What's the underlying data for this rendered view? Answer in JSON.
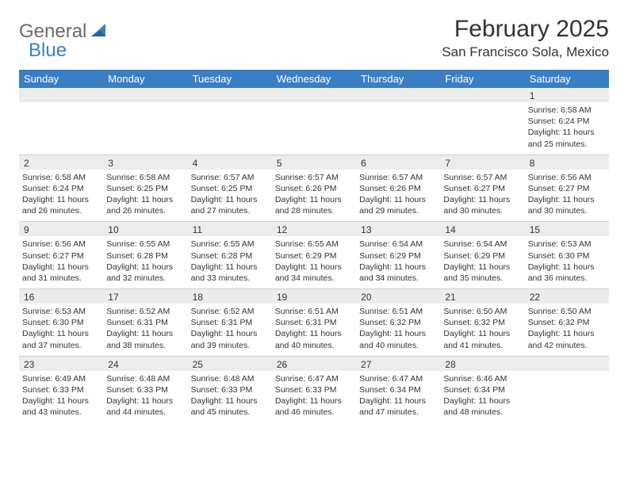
{
  "logo": {
    "part1": "General",
    "part2": "Blue"
  },
  "title": "February 2025",
  "location": "San Francisco Sola, Mexico",
  "colors": {
    "headerBg": "#3a7fc4",
    "headerText": "#ffffff",
    "stripBg": "#ececec",
    "bodyText": "#333333",
    "logoGray": "#6a6a6a",
    "logoBlue": "#3a7fc4",
    "rowBorder": "#cfcfcf"
  },
  "dayHeaders": [
    "Sunday",
    "Monday",
    "Tuesday",
    "Wednesday",
    "Thursday",
    "Friday",
    "Saturday"
  ],
  "weeks": [
    [
      {
        "n": "",
        "sunrise": "",
        "sunset": "",
        "daylight": ""
      },
      {
        "n": "",
        "sunrise": "",
        "sunset": "",
        "daylight": ""
      },
      {
        "n": "",
        "sunrise": "",
        "sunset": "",
        "daylight": ""
      },
      {
        "n": "",
        "sunrise": "",
        "sunset": "",
        "daylight": ""
      },
      {
        "n": "",
        "sunrise": "",
        "sunset": "",
        "daylight": ""
      },
      {
        "n": "",
        "sunrise": "",
        "sunset": "",
        "daylight": ""
      },
      {
        "n": "1",
        "sunrise": "Sunrise: 6:58 AM",
        "sunset": "Sunset: 6:24 PM",
        "daylight": "Daylight: 11 hours and 25 minutes."
      }
    ],
    [
      {
        "n": "2",
        "sunrise": "Sunrise: 6:58 AM",
        "sunset": "Sunset: 6:24 PM",
        "daylight": "Daylight: 11 hours and 26 minutes."
      },
      {
        "n": "3",
        "sunrise": "Sunrise: 6:58 AM",
        "sunset": "Sunset: 6:25 PM",
        "daylight": "Daylight: 11 hours and 26 minutes."
      },
      {
        "n": "4",
        "sunrise": "Sunrise: 6:57 AM",
        "sunset": "Sunset: 6:25 PM",
        "daylight": "Daylight: 11 hours and 27 minutes."
      },
      {
        "n": "5",
        "sunrise": "Sunrise: 6:57 AM",
        "sunset": "Sunset: 6:26 PM",
        "daylight": "Daylight: 11 hours and 28 minutes."
      },
      {
        "n": "6",
        "sunrise": "Sunrise: 6:57 AM",
        "sunset": "Sunset: 6:26 PM",
        "daylight": "Daylight: 11 hours and 29 minutes."
      },
      {
        "n": "7",
        "sunrise": "Sunrise: 6:57 AM",
        "sunset": "Sunset: 6:27 PM",
        "daylight": "Daylight: 11 hours and 30 minutes."
      },
      {
        "n": "8",
        "sunrise": "Sunrise: 6:56 AM",
        "sunset": "Sunset: 6:27 PM",
        "daylight": "Daylight: 11 hours and 30 minutes."
      }
    ],
    [
      {
        "n": "9",
        "sunrise": "Sunrise: 6:56 AM",
        "sunset": "Sunset: 6:27 PM",
        "daylight": "Daylight: 11 hours and 31 minutes."
      },
      {
        "n": "10",
        "sunrise": "Sunrise: 6:55 AM",
        "sunset": "Sunset: 6:28 PM",
        "daylight": "Daylight: 11 hours and 32 minutes."
      },
      {
        "n": "11",
        "sunrise": "Sunrise: 6:55 AM",
        "sunset": "Sunset: 6:28 PM",
        "daylight": "Daylight: 11 hours and 33 minutes."
      },
      {
        "n": "12",
        "sunrise": "Sunrise: 6:55 AM",
        "sunset": "Sunset: 6:29 PM",
        "daylight": "Daylight: 11 hours and 34 minutes."
      },
      {
        "n": "13",
        "sunrise": "Sunrise: 6:54 AM",
        "sunset": "Sunset: 6:29 PM",
        "daylight": "Daylight: 11 hours and 34 minutes."
      },
      {
        "n": "14",
        "sunrise": "Sunrise: 6:54 AM",
        "sunset": "Sunset: 6:29 PM",
        "daylight": "Daylight: 11 hours and 35 minutes."
      },
      {
        "n": "15",
        "sunrise": "Sunrise: 6:53 AM",
        "sunset": "Sunset: 6:30 PM",
        "daylight": "Daylight: 11 hours and 36 minutes."
      }
    ],
    [
      {
        "n": "16",
        "sunrise": "Sunrise: 6:53 AM",
        "sunset": "Sunset: 6:30 PM",
        "daylight": "Daylight: 11 hours and 37 minutes."
      },
      {
        "n": "17",
        "sunrise": "Sunrise: 6:52 AM",
        "sunset": "Sunset: 6:31 PM",
        "daylight": "Daylight: 11 hours and 38 minutes."
      },
      {
        "n": "18",
        "sunrise": "Sunrise: 6:52 AM",
        "sunset": "Sunset: 6:31 PM",
        "daylight": "Daylight: 11 hours and 39 minutes."
      },
      {
        "n": "19",
        "sunrise": "Sunrise: 6:51 AM",
        "sunset": "Sunset: 6:31 PM",
        "daylight": "Daylight: 11 hours and 40 minutes."
      },
      {
        "n": "20",
        "sunrise": "Sunrise: 6:51 AM",
        "sunset": "Sunset: 6:32 PM",
        "daylight": "Daylight: 11 hours and 40 minutes."
      },
      {
        "n": "21",
        "sunrise": "Sunrise: 6:50 AM",
        "sunset": "Sunset: 6:32 PM",
        "daylight": "Daylight: 11 hours and 41 minutes."
      },
      {
        "n": "22",
        "sunrise": "Sunrise: 6:50 AM",
        "sunset": "Sunset: 6:32 PM",
        "daylight": "Daylight: 11 hours and 42 minutes."
      }
    ],
    [
      {
        "n": "23",
        "sunrise": "Sunrise: 6:49 AM",
        "sunset": "Sunset: 6:33 PM",
        "daylight": "Daylight: 11 hours and 43 minutes."
      },
      {
        "n": "24",
        "sunrise": "Sunrise: 6:48 AM",
        "sunset": "Sunset: 6:33 PM",
        "daylight": "Daylight: 11 hours and 44 minutes."
      },
      {
        "n": "25",
        "sunrise": "Sunrise: 6:48 AM",
        "sunset": "Sunset: 6:33 PM",
        "daylight": "Daylight: 11 hours and 45 minutes."
      },
      {
        "n": "26",
        "sunrise": "Sunrise: 6:47 AM",
        "sunset": "Sunset: 6:33 PM",
        "daylight": "Daylight: 11 hours and 46 minutes."
      },
      {
        "n": "27",
        "sunrise": "Sunrise: 6:47 AM",
        "sunset": "Sunset: 6:34 PM",
        "daylight": "Daylight: 11 hours and 47 minutes."
      },
      {
        "n": "28",
        "sunrise": "Sunrise: 6:46 AM",
        "sunset": "Sunset: 6:34 PM",
        "daylight": "Daylight: 11 hours and 48 minutes."
      },
      {
        "n": "",
        "sunrise": "",
        "sunset": "",
        "daylight": ""
      }
    ]
  ]
}
